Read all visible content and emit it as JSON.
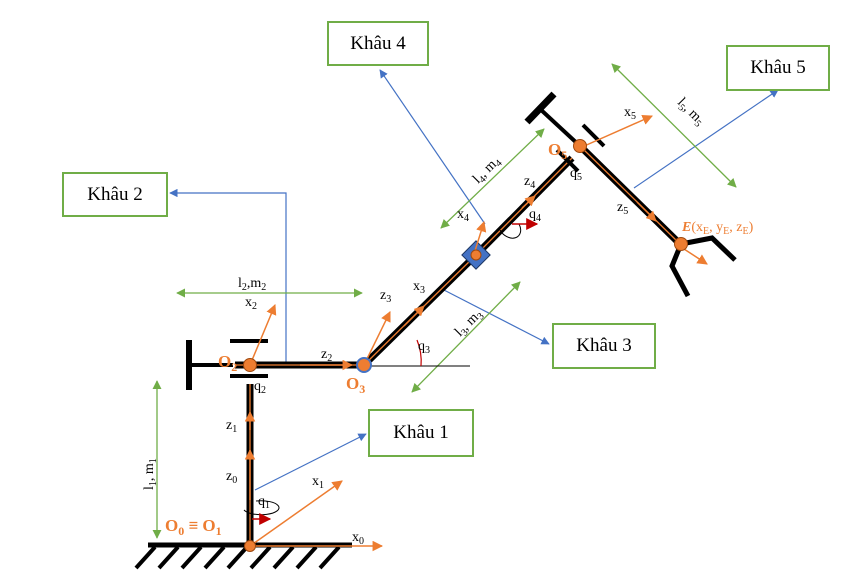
{
  "links": [
    {
      "id": "k1",
      "label": "Khâu 1"
    },
    {
      "id": "k2",
      "label": "Khâu 2"
    },
    {
      "id": "k3",
      "label": "Khâu 3"
    },
    {
      "id": "k4",
      "label": "Khâu 4"
    },
    {
      "id": "k5",
      "label": "Khâu 5"
    }
  ],
  "dimensions": {
    "d1": {
      "a": "l",
      "as": "1",
      "b": "m",
      "bs": "1"
    },
    "d2": {
      "a": "l",
      "as": "2",
      "b": "m",
      "bs": "2"
    },
    "d3": {
      "a": "l",
      "as": "3",
      "b": "m",
      "bs": "3"
    },
    "d4": {
      "a": "l",
      "as": "4",
      "b": "m",
      "bs": "4"
    },
    "d5": {
      "a": "l",
      "as": "5",
      "b": "m",
      "bs": "5"
    }
  },
  "axes": {
    "x0": {
      "b": "x",
      "s": "0"
    },
    "x1": {
      "b": "x",
      "s": "1"
    },
    "x2": {
      "b": "x",
      "s": "2"
    },
    "x3": {
      "b": "x",
      "s": "3"
    },
    "x4": {
      "b": "x",
      "s": "4"
    },
    "x5": {
      "b": "x",
      "s": "5"
    },
    "z0": {
      "b": "z",
      "s": "0"
    },
    "z1": {
      "b": "z",
      "s": "1"
    },
    "z2": {
      "b": "z",
      "s": "2"
    },
    "z3": {
      "b": "z",
      "s": "3"
    },
    "z4": {
      "b": "z",
      "s": "4"
    },
    "z5": {
      "b": "z",
      "s": "5"
    }
  },
  "joints": {
    "q1": {
      "b": "q",
      "s": "1"
    },
    "q2": {
      "b": "q",
      "s": "2"
    },
    "q3": {
      "b": "q",
      "s": "3"
    },
    "q4": {
      "b": "q",
      "s": "4"
    },
    "q5": {
      "b": "q",
      "s": "5"
    }
  },
  "origins": {
    "o01": {
      "a": "O",
      "as": "0",
      "mid": " ≡ O",
      "bs": "1"
    },
    "o2": {
      "a": "O",
      "as": "2"
    },
    "o3": {
      "a": "O",
      "as": "3"
    },
    "o5": {
      "a": "O",
      "as": "5"
    }
  },
  "end_effector": {
    "E": "E",
    "open": "(x",
    "s1": "E",
    "c1": ", y",
    "s2": "E",
    "c2": ", z",
    "s3": "E",
    "close": ")"
  },
  "colors": {
    "link": "#000000",
    "highlight": "#ed7d31",
    "dim": "#70ad47",
    "leader": "#4472c4",
    "joint_arrow": "#c00000"
  }
}
